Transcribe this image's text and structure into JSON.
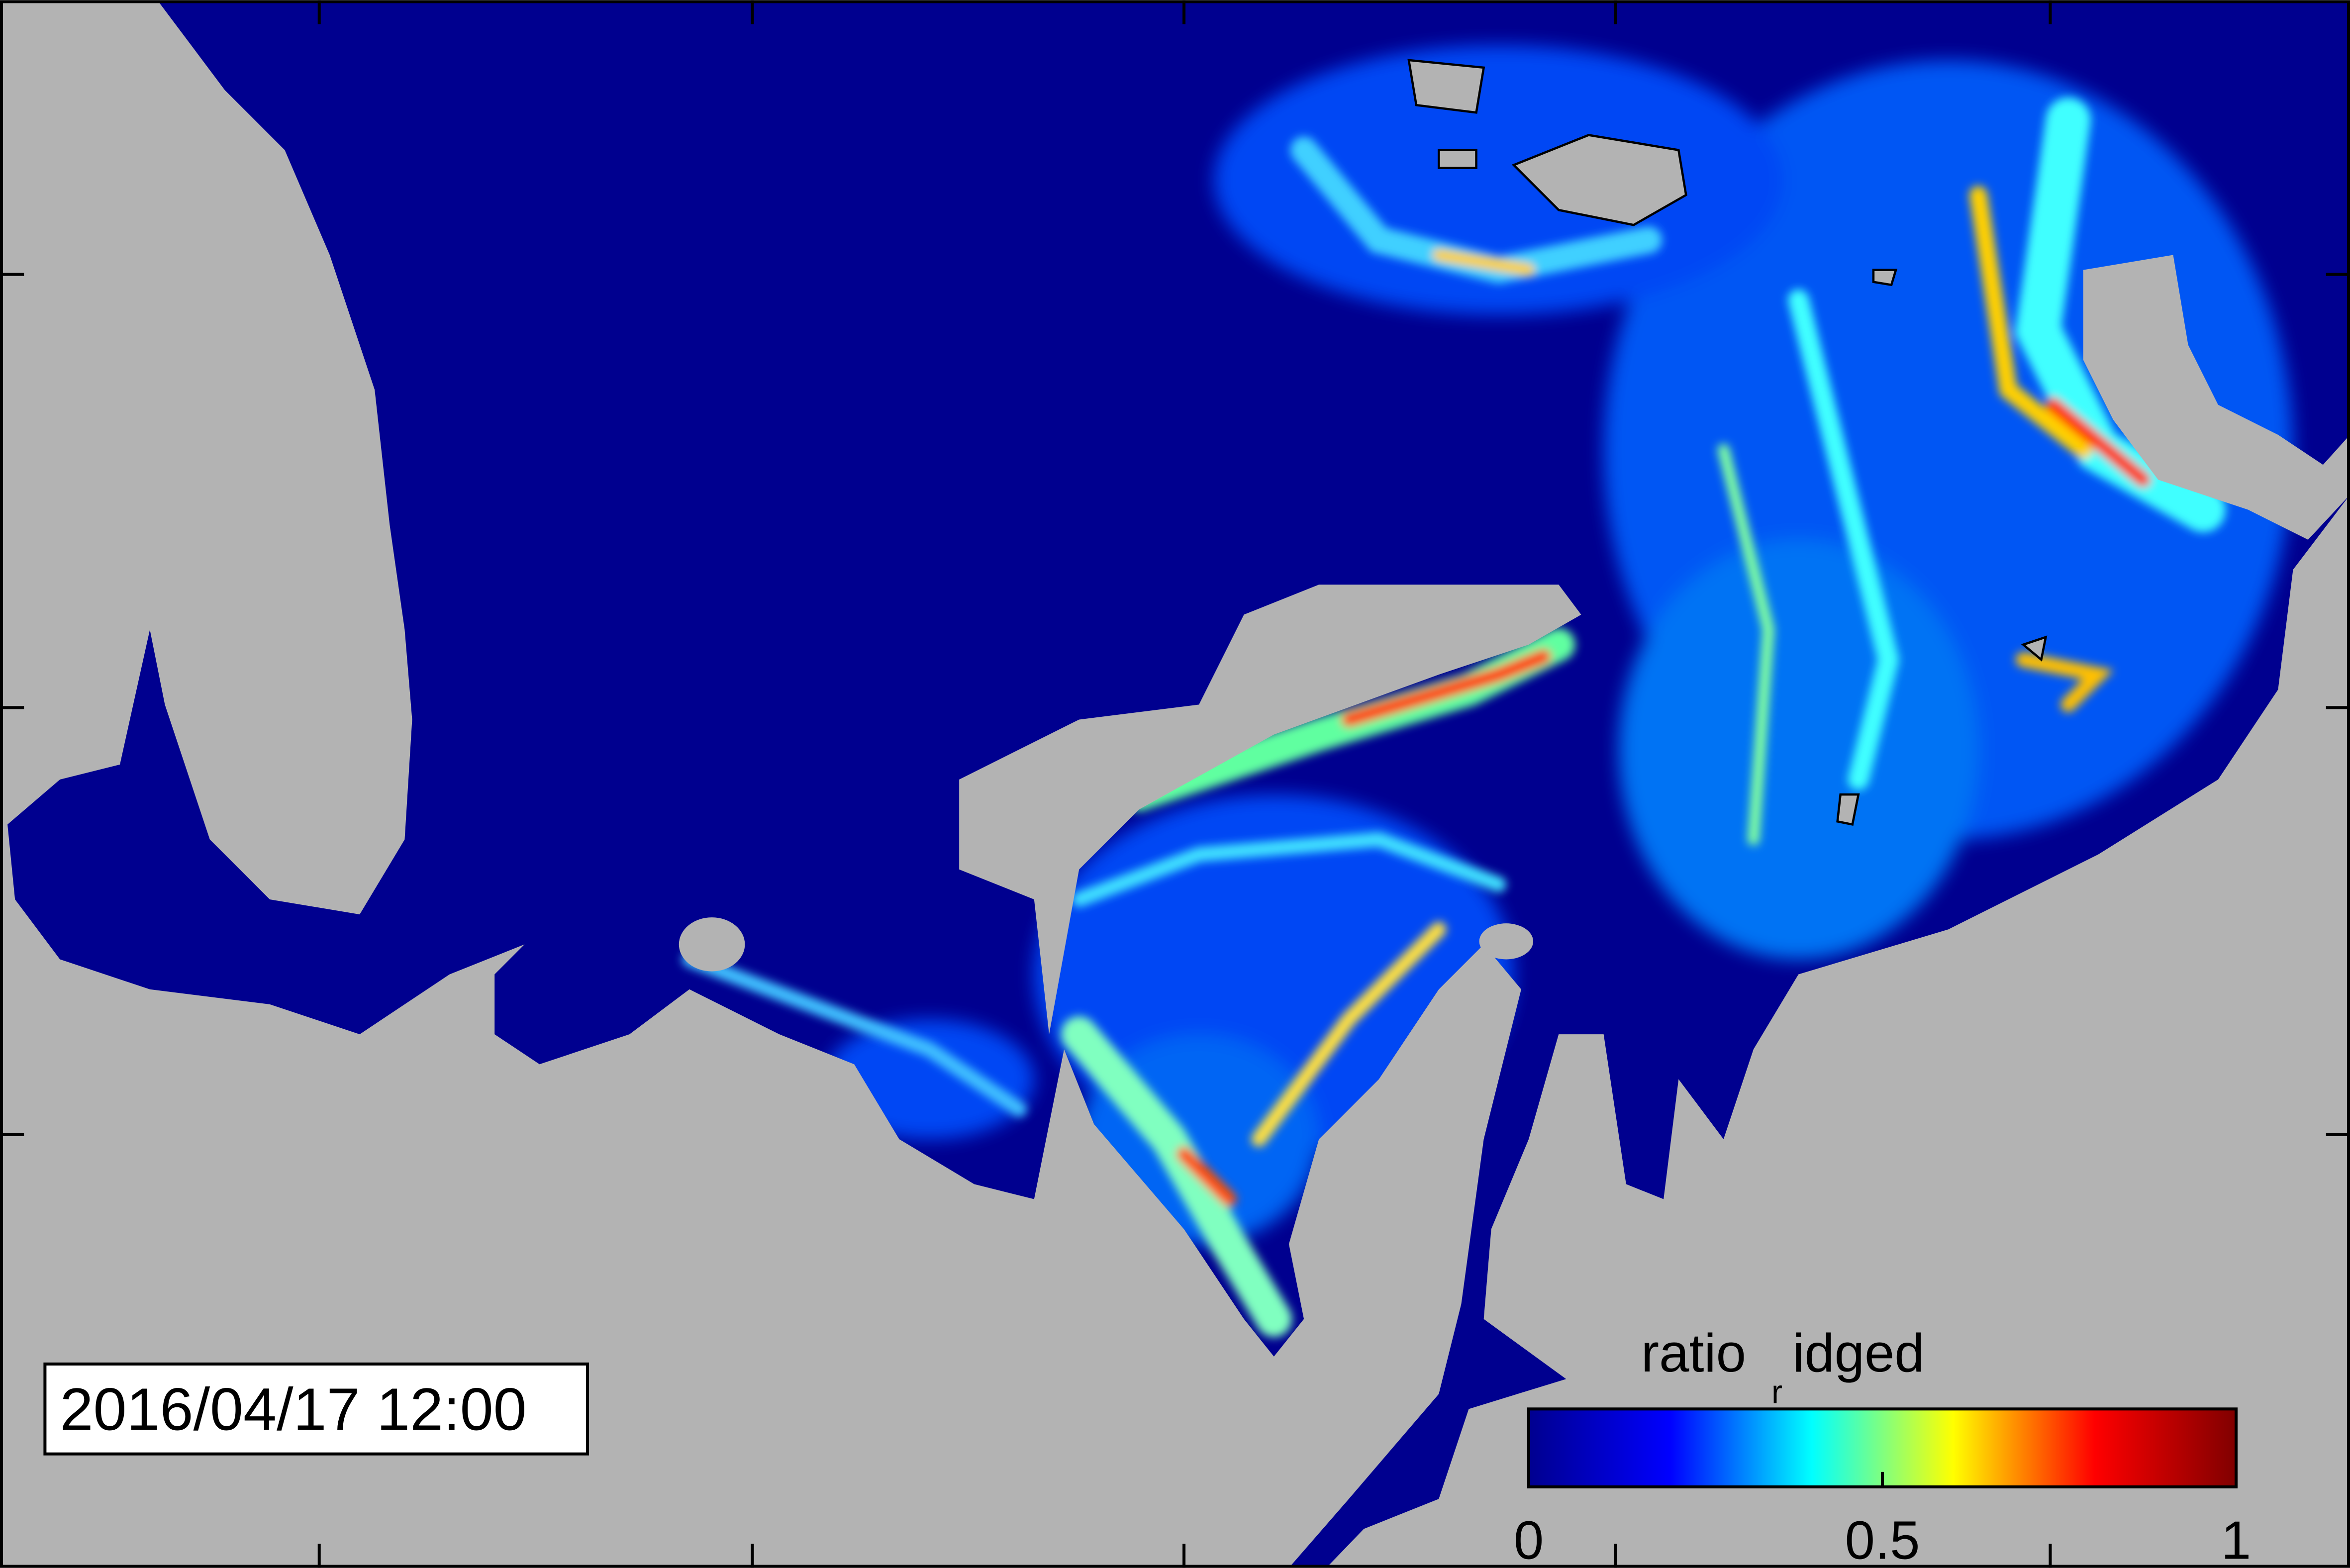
{
  "map": {
    "timestamp": "2016/04/17 12:00"
  },
  "colorbar": {
    "label_parts": [
      "ratio",
      "r",
      "idged"
    ],
    "lim": [
      0,
      1
    ],
    "ticks": [
      0,
      0.5,
      1
    ],
    "colormap": [
      "#00008f",
      "#0000ff",
      "#00ffff",
      "#ffff00",
      "#ff0000",
      "#800000"
    ]
  }
}
